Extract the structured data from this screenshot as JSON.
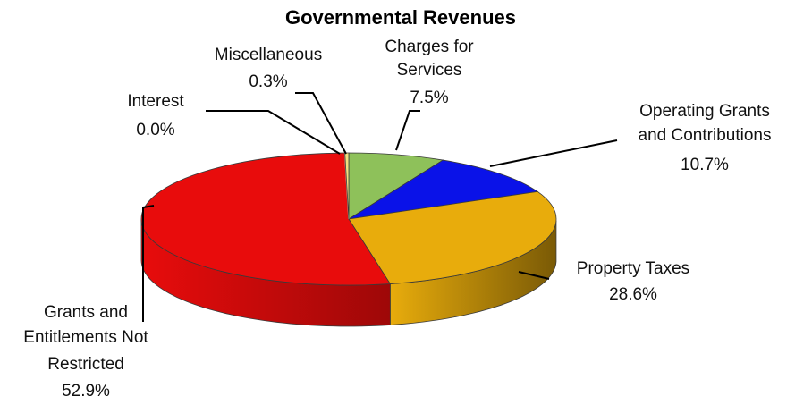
{
  "chart_data": {
    "type": "pie",
    "title": "Governmental Revenues",
    "slices": [
      {
        "label_lines": [
          "Charges for",
          "Services"
        ],
        "pct_label": "7.5%",
        "value": 7.5,
        "color": "#8ec15a",
        "side": "#5d8a33"
      },
      {
        "label_lines": [
          "Operating Grants",
          "and Contributions"
        ],
        "pct_label": "10.7%",
        "value": 10.7,
        "color": "#0a12e8",
        "side": "#050a8c"
      },
      {
        "label_lines": [
          "Property Taxes"
        ],
        "pct_label": "28.6%",
        "value": 28.6,
        "color": "#e8ac0c",
        "side": "#7a5a06"
      },
      {
        "label_lines": [
          "Grants and",
          "Entitlements Not",
          "Restricted"
        ],
        "pct_label": "52.9%",
        "value": 52.9,
        "color": "#e80c0c",
        "side": "#9e0808"
      },
      {
        "label_lines": [
          "Interest"
        ],
        "pct_label": "0.0%",
        "value": 0.0,
        "color": "#c9b99b",
        "side": "#8a7d63"
      },
      {
        "label_lines": [
          "Miscellaneous"
        ],
        "pct_label": "0.3%",
        "value": 0.3,
        "color": "#f0e080",
        "side": "#a89a40"
      }
    ],
    "legend": "none",
    "style": "3d-pie"
  }
}
